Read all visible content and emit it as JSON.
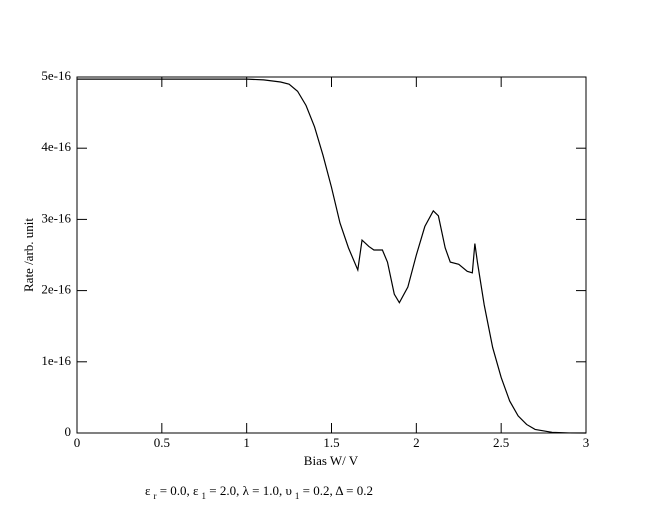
{
  "chart_data": {
    "type": "line",
    "xlabel": "Bias W/ V",
    "ylabel": "Rate /arb. unit",
    "annotation": [
      "ε",
      "r",
      " = 0.0,  ε",
      "1",
      " = 2.0, λ = 1.0, υ",
      "1",
      " = 0.2, Δ = 0.2"
    ],
    "xlim": [
      0,
      3
    ],
    "xticks": [
      0,
      0.5,
      1,
      1.5,
      2,
      2.5,
      3
    ],
    "ylim": [
      0,
      5e-16
    ],
    "yticks": [
      0,
      1e-16,
      2e-16,
      3e-16,
      4e-16,
      5e-16
    ],
    "x": [
      0,
      0.5,
      1.0,
      1.1,
      1.2,
      1.25,
      1.3,
      1.35,
      1.4,
      1.45,
      1.5,
      1.55,
      1.6,
      1.655,
      1.68,
      1.72,
      1.75,
      1.8,
      1.83,
      1.87,
      1.9,
      1.95,
      2.0,
      2.05,
      2.1,
      2.13,
      2.17,
      2.2,
      2.25,
      2.3,
      2.33,
      2.345,
      2.36,
      2.4,
      2.45,
      2.5,
      2.55,
      2.6,
      2.65,
      2.7,
      2.8,
      2.9,
      3.0
    ],
    "series": [
      {
        "color": "#000000",
        "values": [
          4.97e-16,
          4.97e-16,
          4.97e-16,
          4.96e-16,
          4.93e-16,
          4.9e-16,
          4.8e-16,
          4.6e-16,
          4.3e-16,
          3.9e-16,
          3.45e-16,
          2.95e-16,
          2.6e-16,
          2.29e-16,
          2.71e-16,
          2.62e-16,
          2.57e-16,
          2.57e-16,
          2.4e-16,
          1.95e-16,
          1.83e-16,
          2.05e-16,
          2.5e-16,
          2.9e-16,
          3.12e-16,
          3.05e-16,
          2.6e-16,
          2.4e-16,
          2.37e-16,
          2.27e-16,
          2.25e-16,
          2.66e-16,
          2.4e-16,
          1.8e-16,
          1.2e-16,
          7.8e-17,
          4.5e-17,
          2.4e-17,
          1.2e-17,
          5e-18,
          1e-18,
          1e-19,
          0
        ]
      }
    ]
  }
}
